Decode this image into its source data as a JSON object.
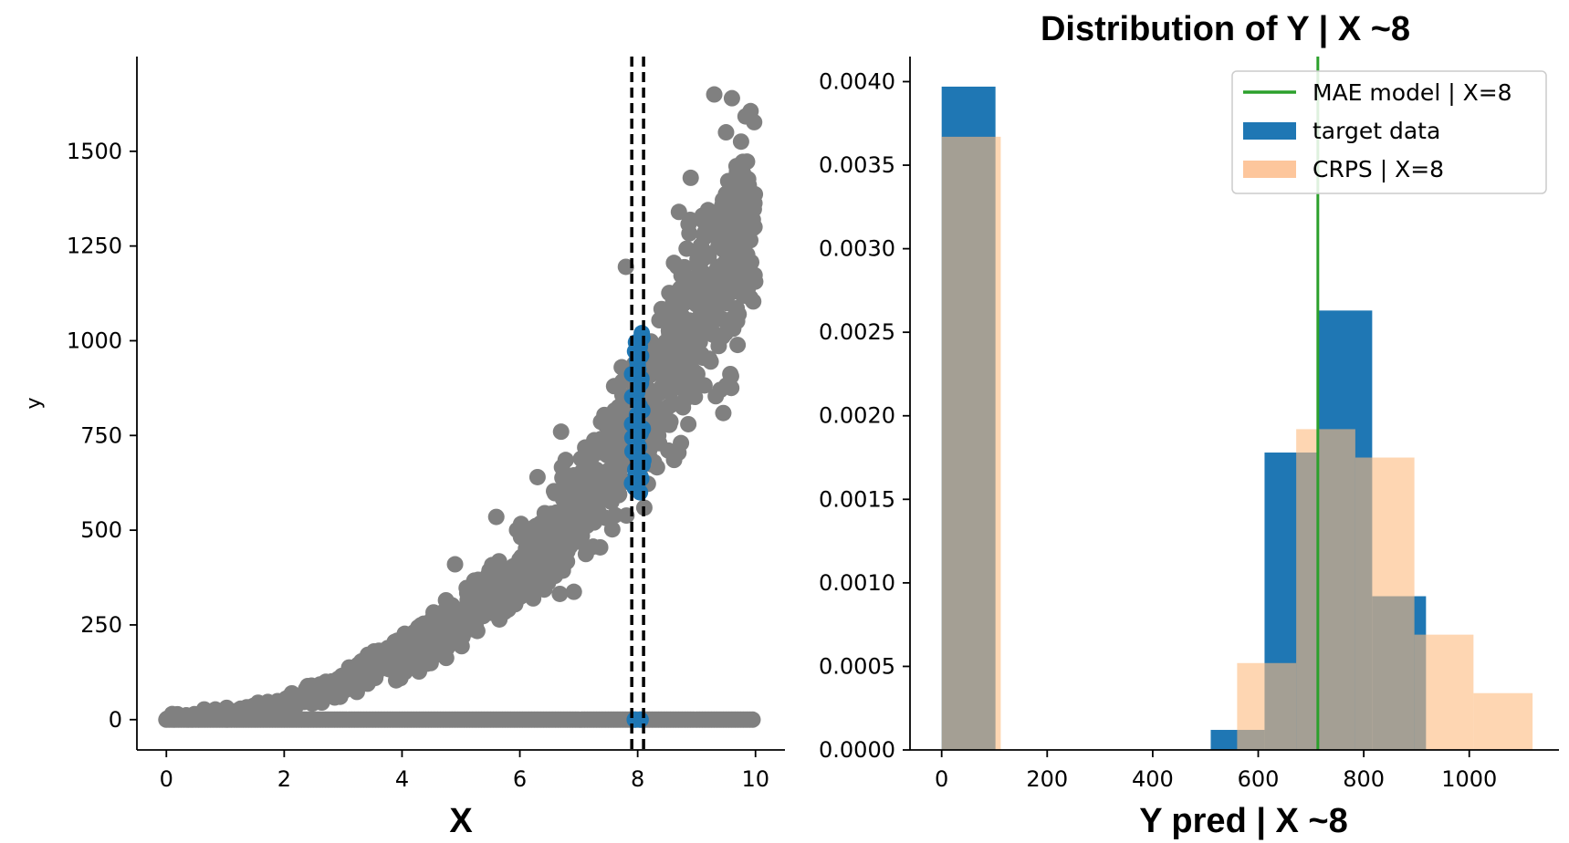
{
  "chart_data": [
    {
      "type": "scatter",
      "title": "",
      "xlabel": "X",
      "ylabel": "y",
      "xlim": [
        -0.5,
        10.5
      ],
      "ylim": [
        -80,
        1750
      ],
      "xticks": [
        0,
        2,
        4,
        6,
        8,
        10
      ],
      "yticks": [
        0,
        250,
        500,
        750,
        1000,
        1250,
        1500
      ],
      "xtick_labels": [
        "0",
        "2",
        "4",
        "6",
        "8",
        "10"
      ],
      "ytick_labels": [
        "0",
        "250",
        "500",
        "750",
        "1000",
        "1250",
        "1500"
      ],
      "grid": false,
      "vlines": [
        7.9,
        8.1
      ],
      "colors": {
        "all": "#808080",
        "selected": "#1f77b4",
        "vline": "#000000"
      },
      "series": [
        {
          "description_key": "all",
          "trend_curve": {
            "x": [
              0,
              1,
              2,
              3,
              4,
              5,
              6,
              7,
              8,
              9,
              10
            ],
            "y": [
              0,
              12,
              40,
              95,
              175,
              270,
              390,
              560,
              790,
              1040,
              1330
            ]
          },
          "spread_fraction": 0.2,
          "zero_band": {
            "x_range": [
              0,
              10
            ],
            "y": 0
          }
        },
        {
          "description_key": "selected",
          "x_range": [
            7.9,
            8.1
          ],
          "y_range": [
            600,
            1020
          ],
          "zero_points_x": [
            7.95,
            8.05
          ]
        }
      ]
    },
    {
      "type": "bar",
      "title": "Distribution of Y | X ~8",
      "xlabel": "Y pred | X ~8",
      "ylabel": "",
      "xlim": [
        -60,
        1170
      ],
      "ylim": [
        0,
        0.00415
      ],
      "xticks": [
        0,
        200,
        400,
        600,
        800,
        1000
      ],
      "yticks": [
        0,
        0.0005,
        0.001,
        0.0015,
        0.002,
        0.0025,
        0.003,
        0.0035,
        0.004
      ],
      "xtick_labels": [
        "0",
        "200",
        "400",
        "600",
        "800",
        "1000"
      ],
      "ytick_labels": [
        "0.0000",
        "0.0005",
        "0.0010",
        "0.0015",
        "0.0020",
        "0.0025",
        "0.0030",
        "0.0035",
        "0.0040"
      ],
      "grid": false,
      "legend_position": "top-right",
      "vline": {
        "x": 713,
        "label": "MAE model | X=8",
        "color": "#2ca02c"
      },
      "series": [
        {
          "name": "target data",
          "color": "#1f77b4",
          "alpha": 1.0,
          "edges": [
            0,
            102,
            204,
            306,
            408,
            510,
            612,
            714,
            816,
            918,
            1020
          ],
          "values": [
            0.00397,
            0,
            0,
            0,
            0,
            0.00012,
            0.00178,
            0.00263,
            0.00092,
            0.0,
            0.0
          ]
        },
        {
          "name": "CRPS | X=8",
          "color": "#fdba7f",
          "alpha": 0.6,
          "edges": [
            0,
            112,
            224,
            336,
            448,
            560,
            672,
            784,
            896,
            1008,
            1120
          ],
          "values": [
            0.00367,
            0,
            0,
            0,
            0,
            0.00052,
            0.00192,
            0.00175,
            0.00069,
            0.00034,
            0.0
          ]
        }
      ],
      "legend": [
        {
          "kind": "line",
          "label": "MAE model | X=8",
          "color": "#2ca02c"
        },
        {
          "kind": "patch",
          "label": "target data",
          "color": "#1f77b4"
        },
        {
          "kind": "patch",
          "label": "CRPS | X=8",
          "color": "#fdc69c"
        }
      ]
    }
  ]
}
